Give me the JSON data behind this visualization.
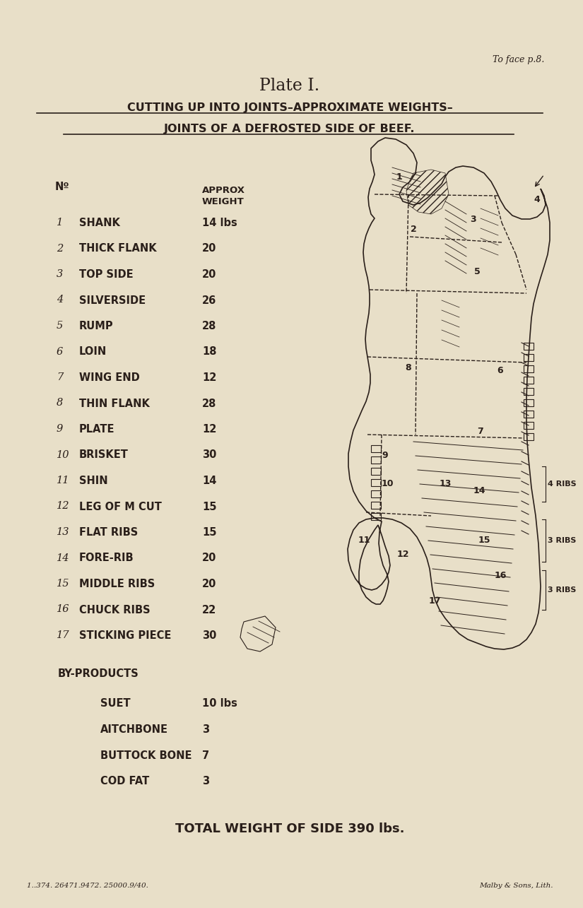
{
  "bg_color": "#e8dfc8",
  "text_color": "#2a1f1a",
  "title_top_right": "To face p.8.",
  "title_main": "Plate I.",
  "subtitle1": "CUTTING UP INTO JOINTS–APPROXIMATE WEIGHTS–",
  "subtitle2": "JOINTS OF A DEFROSTED SIDE OF BEEF.",
  "col_header_no": "Nº",
  "col_header_approx": "APPROX",
  "col_header_weight": "WEIGHT",
  "joints": [
    {
      "num": "1",
      "name": "SHANK",
      "weight": "14 lbs"
    },
    {
      "num": "2",
      "name": "THICK FLANK",
      "weight": "20"
    },
    {
      "num": "3",
      "name": "TOP SIDE",
      "weight": "20"
    },
    {
      "num": "4",
      "name": "SILVERSIDE",
      "weight": "26"
    },
    {
      "num": "5",
      "name": "RUMP",
      "weight": "28"
    },
    {
      "num": "6",
      "name": "LOIN",
      "weight": "18"
    },
    {
      "num": "7",
      "name": "WING END",
      "weight": "12"
    },
    {
      "num": "8",
      "name": "THIN FLANK",
      "weight": "28"
    },
    {
      "num": "9",
      "name": "PLATE",
      "weight": "12"
    },
    {
      "num": "10",
      "name": "BRISKET",
      "weight": "30"
    },
    {
      "num": "11",
      "name": "SHIN",
      "weight": "14"
    },
    {
      "num": "12",
      "name": "LEG OF M CUT",
      "weight": "15"
    },
    {
      "num": "13",
      "name": "FLAT RIBS",
      "weight": "15"
    },
    {
      "num": "14",
      "name": "FORE-RIB",
      "weight": "20"
    },
    {
      "num": "15",
      "name": "MIDDLE RIBS",
      "weight": "20"
    },
    {
      "num": "16",
      "name": "CHUCK RIBS",
      "weight": "22"
    },
    {
      "num": "17",
      "name": "STICKING PIECE",
      "weight": "30"
    }
  ],
  "byproducts_header": "BY-PRODUCTS",
  "byproducts": [
    {
      "name": "SUET",
      "weight": "10 lbs"
    },
    {
      "name": "AITCHBONE",
      "weight": "3"
    },
    {
      "name": "BUTTOCK BONE",
      "weight": "7"
    },
    {
      "name": "COD FAT",
      "weight": "3"
    }
  ],
  "total_weight_label": "TOTAL WEIGHT OF SIDE 390 lbs.",
  "footer_left": "1..374. 26471.9472. 25000.9/40.",
  "footer_right": "Malby & Sons, Lith.",
  "ribs_labels": [
    "4 RIBS",
    "3 RIBS",
    "3 RIBS"
  ]
}
